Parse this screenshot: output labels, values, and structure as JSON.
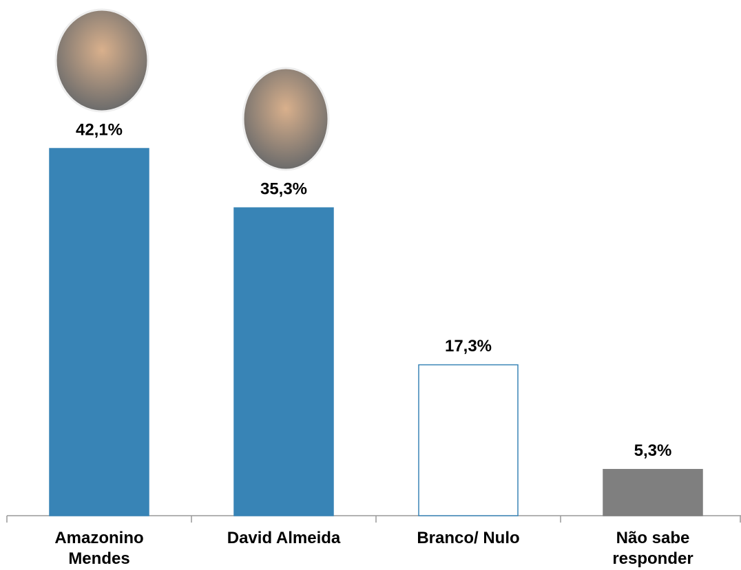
{
  "chart_data": {
    "type": "bar",
    "categories": [
      "Amazonino Mendes",
      "David Almeida",
      "Branco/ Nulo",
      "Não sabe responder"
    ],
    "values": [
      42.1,
      35.3,
      17.3,
      5.3
    ],
    "value_labels": [
      "42,1%",
      "35,3%",
      "17,3%",
      "5,3%"
    ],
    "colors": [
      "#3884b6",
      "#3884b6",
      "#ffffff",
      "#7f7f7f"
    ]
  }
}
